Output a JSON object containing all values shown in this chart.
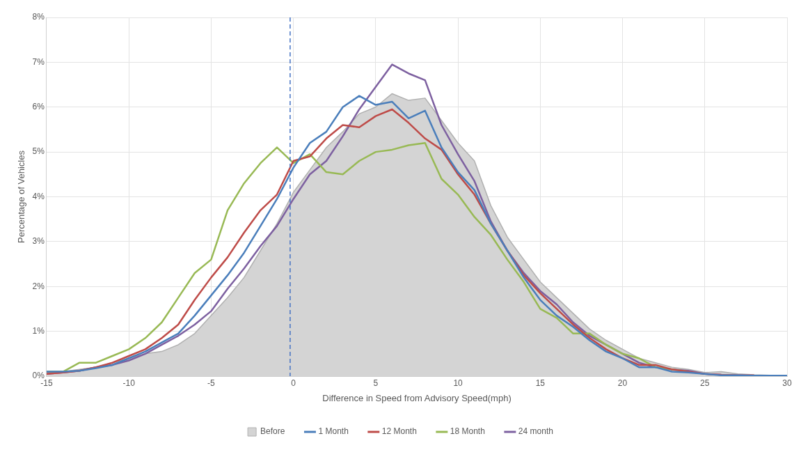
{
  "chart_data": {
    "type": "line",
    "xlabel": "Difference in Speed from Advisory Speed(mph)",
    "ylabel": "Percentage of Vehicles",
    "x": [
      -15,
      -14,
      -13,
      -12,
      -11,
      -10,
      -9,
      -8,
      -7,
      -6,
      -5,
      -4,
      -3,
      -2,
      -1,
      0,
      1,
      2,
      3,
      4,
      5,
      6,
      7,
      8,
      9,
      10,
      11,
      12,
      13,
      14,
      15,
      16,
      17,
      18,
      19,
      20,
      21,
      22,
      23,
      24,
      25,
      26,
      27,
      28,
      29,
      30
    ],
    "series": [
      {
        "name": "Before",
        "type": "area",
        "color": "#d4d4d4",
        "values": [
          0.1,
          0.1,
          0.15,
          0.2,
          0.3,
          0.4,
          0.5,
          0.55,
          0.7,
          0.95,
          1.35,
          1.75,
          2.2,
          2.8,
          3.4,
          4.1,
          4.6,
          5.1,
          5.45,
          5.85,
          6.0,
          6.3,
          6.15,
          6.2,
          5.7,
          5.2,
          4.8,
          3.8,
          3.1,
          2.6,
          2.1,
          1.75,
          1.4,
          1.05,
          0.8,
          0.6,
          0.4,
          0.3,
          0.2,
          0.15,
          0.08,
          0.1,
          0.05,
          0.03,
          0.02,
          0.01
        ]
      },
      {
        "name": "1 Month",
        "color": "#4a7ebb",
        "values": [
          0.1,
          0.1,
          0.12,
          0.18,
          0.25,
          0.4,
          0.55,
          0.75,
          0.95,
          1.35,
          1.8,
          2.25,
          2.75,
          3.35,
          3.95,
          4.65,
          5.2,
          5.45,
          6.0,
          6.25,
          6.05,
          6.12,
          5.75,
          5.92,
          5.1,
          4.55,
          4.15,
          3.4,
          2.8,
          2.2,
          1.7,
          1.35,
          1.1,
          0.8,
          0.55,
          0.4,
          0.2,
          0.2,
          0.1,
          0.08,
          0.05,
          0.02,
          0.02,
          0.01,
          0.01,
          0.01
        ]
      },
      {
        "name": "12 Month",
        "color": "#be4b48",
        "values": [
          0.05,
          0.08,
          0.12,
          0.2,
          0.3,
          0.45,
          0.6,
          0.85,
          1.15,
          1.7,
          2.2,
          2.65,
          3.2,
          3.7,
          4.05,
          4.8,
          4.9,
          5.3,
          5.6,
          5.55,
          5.8,
          5.95,
          5.65,
          5.3,
          5.05,
          4.5,
          4.05,
          3.4,
          2.8,
          2.25,
          1.85,
          1.5,
          1.15,
          0.85,
          0.6,
          0.4,
          0.25,
          0.25,
          0.15,
          0.1,
          0.05,
          0.03,
          0.02,
          0.02,
          null,
          null
        ]
      },
      {
        "name": "18 Month",
        "color": "#98b954",
        "values": [
          0.1,
          0.1,
          0.3,
          0.3,
          0.45,
          0.6,
          0.85,
          1.2,
          1.75,
          2.3,
          2.6,
          3.7,
          4.3,
          4.75,
          5.1,
          4.75,
          4.95,
          4.55,
          4.5,
          4.8,
          5.0,
          5.05,
          5.15,
          5.2,
          4.4,
          4.05,
          3.55,
          3.15,
          2.6,
          2.1,
          1.5,
          1.3,
          0.95,
          0.95,
          0.7,
          0.5,
          0.4,
          0.2,
          0.15,
          0.1,
          null,
          null,
          null,
          null,
          null,
          null
        ]
      },
      {
        "name": "24 month",
        "color": "#7d60a0",
        "values": [
          0.05,
          0.08,
          0.12,
          0.2,
          0.25,
          0.35,
          0.5,
          0.7,
          0.9,
          1.15,
          1.45,
          1.95,
          2.4,
          2.9,
          3.35,
          3.95,
          4.5,
          4.8,
          5.35,
          5.95,
          6.45,
          6.95,
          6.75,
          6.6,
          5.6,
          4.95,
          4.35,
          3.45,
          2.8,
          2.3,
          1.9,
          1.6,
          1.2,
          0.9,
          0.7,
          0.5,
          0.3,
          0.2,
          0.15,
          0.12,
          0.05,
          0.03,
          0.02,
          0.01,
          0.01,
          0.01
        ]
      }
    ],
    "xlim": [
      -15,
      30
    ],
    "xticks": [
      -15,
      -10,
      -5,
      0,
      5,
      10,
      15,
      20,
      25,
      30
    ],
    "ylim": [
      0,
      8
    ],
    "yticks": [
      {
        "value": 0,
        "label": "0%"
      },
      {
        "value": 1,
        "label": "1%"
      },
      {
        "value": 2,
        "label": "2%"
      },
      {
        "value": 3,
        "label": "3%"
      },
      {
        "value": 4,
        "label": "4%"
      },
      {
        "value": 5,
        "label": "5%"
      },
      {
        "value": 6,
        "label": "6%"
      },
      {
        "value": 7,
        "label": "7%"
      },
      {
        "value": 8,
        "label": "8%"
      }
    ],
    "ref_lines": [
      {
        "axis": "x",
        "value": -0.2,
        "color": "#4472c4",
        "line_style": "dashed"
      }
    ],
    "grid": true,
    "legend": "bottom",
    "marker": "none",
    "line_style": "solid"
  }
}
